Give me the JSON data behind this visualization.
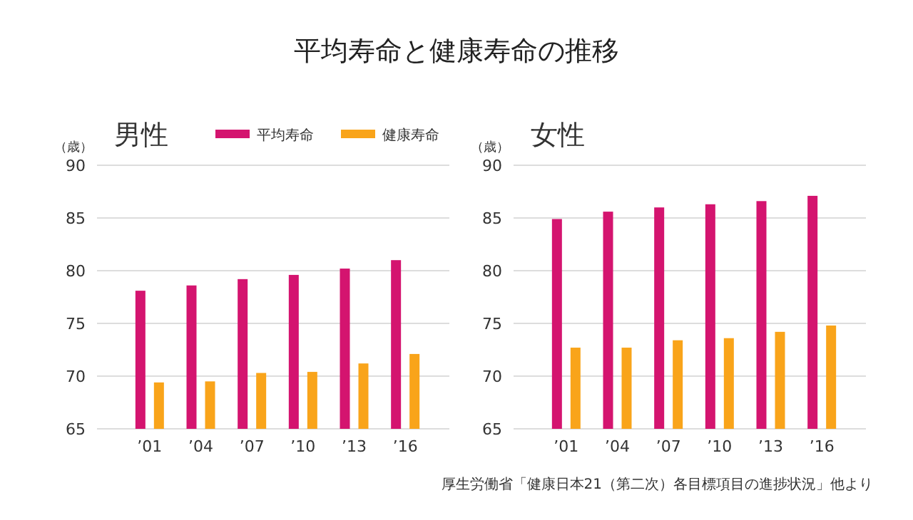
{
  "chart_data": [
    {
      "type": "bar",
      "title": "平均寿命と健康寿命の推移",
      "subtitle": "男性",
      "ylabel": "（歳）",
      "categories": [
        "’01",
        "’04",
        "’07",
        "’10",
        "’13",
        "’16"
      ],
      "series": [
        {
          "name": "平均寿命",
          "color": "#d4146f",
          "values": [
            78.1,
            78.6,
            79.2,
            79.6,
            80.2,
            81.0
          ]
        },
        {
          "name": "健康寿命",
          "color": "#f9a41a",
          "values": [
            69.4,
            69.5,
            70.3,
            70.4,
            71.2,
            72.1
          ]
        }
      ],
      "ylim": [
        65,
        90
      ],
      "yticks": [
        65,
        70,
        75,
        80,
        85,
        90
      ],
      "grid": "y",
      "legend": "top right"
    },
    {
      "type": "bar",
      "subtitle": "女性",
      "ylabel": "（歳）",
      "categories": [
        "’01",
        "’04",
        "’07",
        "’10",
        "’13",
        "’16"
      ],
      "series": [
        {
          "color": "#d4146f",
          "values": [
            84.9,
            85.6,
            86.0,
            86.3,
            86.6,
            87.1
          ]
        },
        {
          "color": "#f9a41a",
          "values": [
            72.7,
            72.7,
            73.4,
            73.6,
            74.2,
            74.8
          ]
        }
      ],
      "ylim": [
        65,
        90
      ],
      "yticks": [
        65,
        70,
        75,
        80,
        85,
        90
      ],
      "grid": "y",
      "legend": false,
      "annotations": [
        "厚生労働省「健康日本21（第二次）各目標項目の進捗状況」他より"
      ]
    }
  ]
}
